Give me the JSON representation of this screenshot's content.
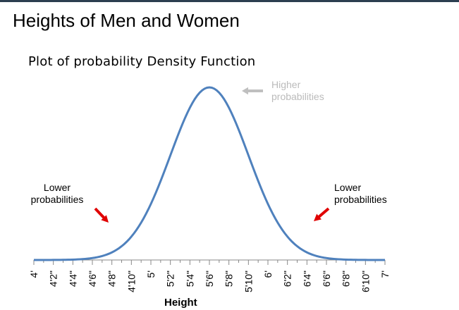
{
  "slide": {
    "title": "Heights of Men and Women"
  },
  "chart_data": {
    "type": "line",
    "title": "Plot of probability Density Function",
    "xlabel": "Height",
    "ylabel": "",
    "x_tick_labels": [
      "4'",
      "4'2\"",
      "4'4\"",
      "4'6\"",
      "4'8\"",
      "4'10\"",
      "5'",
      "5'2\"",
      "5'4\"",
      "5'6\"",
      "5'8\"",
      "5'10\"",
      "6'",
      "6'2\"",
      "6'4\"",
      "6'6\"",
      "6'8\"",
      "6'10\"",
      "7'"
    ],
    "x_range_inches": [
      48,
      84
    ],
    "series": [
      {
        "distribution": "normal",
        "mean_inches": 66,
        "sd_inches": 4,
        "color": "#4f81bd"
      }
    ],
    "annotations": {
      "higher": [
        "Higher",
        "probabilities"
      ],
      "lower_left": [
        "Lower",
        "probabilities"
      ],
      "lower_right": [
        "Lower",
        "probabilities"
      ]
    },
    "colors": {
      "curve": "#4f81bd",
      "arrow_red": "#e00000",
      "arrow_gray": "#bfbfbf",
      "text_gray": "#bbbbbb"
    },
    "grid": false,
    "legend": "none"
  }
}
